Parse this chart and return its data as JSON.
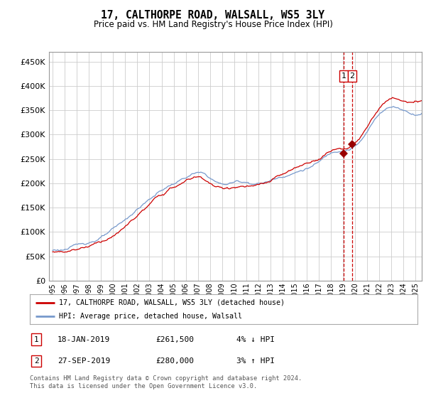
{
  "title": "17, CALTHORPE ROAD, WALSALL, WS5 3LY",
  "subtitle": "Price paid vs. HM Land Registry's House Price Index (HPI)",
  "ylabel_ticks": [
    "£0",
    "£50K",
    "£100K",
    "£150K",
    "£200K",
    "£250K",
    "£300K",
    "£350K",
    "£400K",
    "£450K"
  ],
  "ytick_values": [
    0,
    50000,
    100000,
    150000,
    200000,
    250000,
    300000,
    350000,
    400000,
    450000
  ],
  "ylim": [
    0,
    470000
  ],
  "xlim_start": 1995.0,
  "xlim_end": 2025.5,
  "transaction1_date": 2019.05,
  "transaction1_value": 261500,
  "transaction1_label": "1",
  "transaction2_date": 2019.75,
  "transaction2_value": 280000,
  "transaction2_label": "2",
  "legend_line1": "17, CALTHORPE ROAD, WALSALL, WS5 3LY (detached house)",
  "legend_line2": "HPI: Average price, detached house, Walsall",
  "table_row1_num": "1",
  "table_row1_date": "18-JAN-2019",
  "table_row1_price": "£261,500",
  "table_row1_hpi": "4% ↓ HPI",
  "table_row2_num": "2",
  "table_row2_date": "27-SEP-2019",
  "table_row2_price": "£280,000",
  "table_row2_hpi": "3% ↑ HPI",
  "footer": "Contains HM Land Registry data © Crown copyright and database right 2024.\nThis data is licensed under the Open Government Licence v3.0.",
  "color_price": "#cc0000",
  "color_hpi": "#7799cc",
  "color_grid": "#cccccc",
  "color_marker": "#990000",
  "color_dashed": "#cc0000",
  "background_color": "#ffffff"
}
